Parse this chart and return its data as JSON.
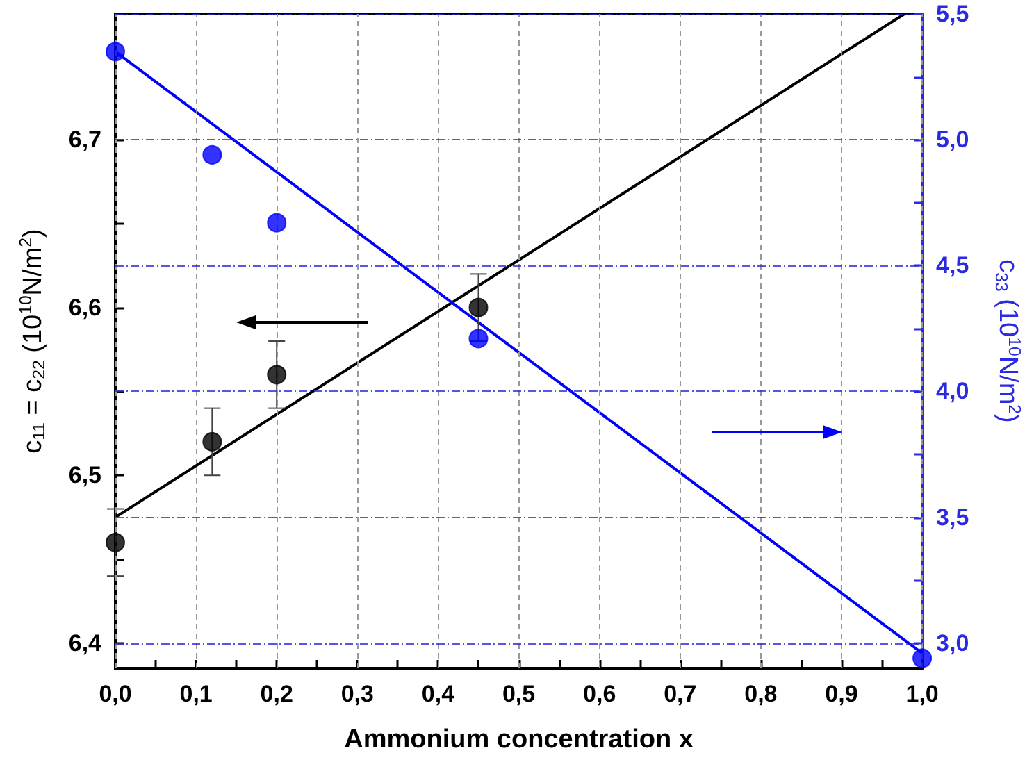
{
  "chart_data": {
    "type": "scatter",
    "xlabel": "Ammonium concentration x",
    "ylabel": "c$_{11}$ = c$_{22}$ (10$^{10}$N/m$^{2}$)",
    "y2label": "c$_{33}$ (10$^{10}$N/m$^{2}$)",
    "xlim": [
      0,
      1
    ],
    "xticks": [
      {
        "value": 0,
        "label": "0,0"
      },
      {
        "value": 0.05,
        "label": null
      },
      {
        "value": 0.1,
        "label": "0,1"
      },
      {
        "value": 0.15,
        "label": null
      },
      {
        "value": 0.2,
        "label": "0,2"
      },
      {
        "value": 0.25,
        "label": null
      },
      {
        "value": 0.3,
        "label": "0,3"
      },
      {
        "value": 0.35,
        "label": null
      },
      {
        "value": 0.4,
        "label": "0,4"
      },
      {
        "value": 0.45,
        "label": null
      },
      {
        "value": 0.5,
        "label": "0,5"
      },
      {
        "value": 0.55,
        "label": null
      },
      {
        "value": 0.6,
        "label": "0,6"
      },
      {
        "value": 0.65,
        "label": null
      },
      {
        "value": 0.7,
        "label": "0,7"
      },
      {
        "value": 0.75,
        "label": null
      },
      {
        "value": 0.8,
        "label": "0,8"
      },
      {
        "value": 0.85,
        "label": null
      },
      {
        "value": 0.9,
        "label": "0,9"
      },
      {
        "value": 0.95,
        "label": null
      },
      {
        "value": 1,
        "label": "1,0"
      }
    ],
    "ylim": [
      6.385,
      6.775
    ],
    "yticks": [
      {
        "value": 6.4,
        "label": "6,4"
      },
      {
        "value": 6.45,
        "label": null
      },
      {
        "value": 6.5,
        "label": "6,5"
      },
      {
        "value": 6.55,
        "label": null
      },
      {
        "value": 6.6,
        "label": "6,6"
      },
      {
        "value": 6.65,
        "label": null
      },
      {
        "value": 6.7,
        "label": "6,7"
      },
      {
        "value": 6.75,
        "label": null
      }
    ],
    "y2lim": [
      2.9,
      5.5
    ],
    "y2ticks": [
      {
        "value": 3,
        "label": "3,0"
      },
      {
        "value": 3.25,
        "label": null
      },
      {
        "value": 3.5,
        "label": "3,5"
      },
      {
        "value": 3.75,
        "label": null
      },
      {
        "value": 4,
        "label": "4,0"
      },
      {
        "value": 4.25,
        "label": null
      },
      {
        "value": 4.5,
        "label": "4,5"
      },
      {
        "value": 4.75,
        "label": null
      },
      {
        "value": 5,
        "label": "5,0"
      },
      {
        "value": 5.25,
        "label": null
      },
      {
        "value": 5.5,
        "label": "5,5"
      }
    ],
    "grid": true,
    "series": [
      {
        "marker": "circle",
        "color": "#000000",
        "x": [
          0,
          0.12,
          0.2,
          0.45
        ],
        "values": [
          6.46,
          6.52,
          6.56,
          6.6
        ],
        "errors": [
          0.02,
          0.02,
          0.02,
          0.02
        ]
      },
      {
        "type": "line",
        "marker": "none",
        "color": "#000000",
        "x": [
          0,
          0.978
        ],
        "values": [
          6.475,
          6.775
        ]
      },
      {
        "marker": "circle",
        "color": "#0000ff",
        "axis": "y2",
        "x": [
          0,
          0.12,
          0.2,
          0.45,
          1
        ],
        "values": [
          5.35,
          4.94,
          4.67,
          4.21,
          2.94
        ]
      },
      {
        "type": "line",
        "marker": "none",
        "color": "#0000ff",
        "axis": "y2",
        "x": [
          0,
          1
        ],
        "values": [
          5.35,
          2.96
        ]
      }
    ]
  }
}
